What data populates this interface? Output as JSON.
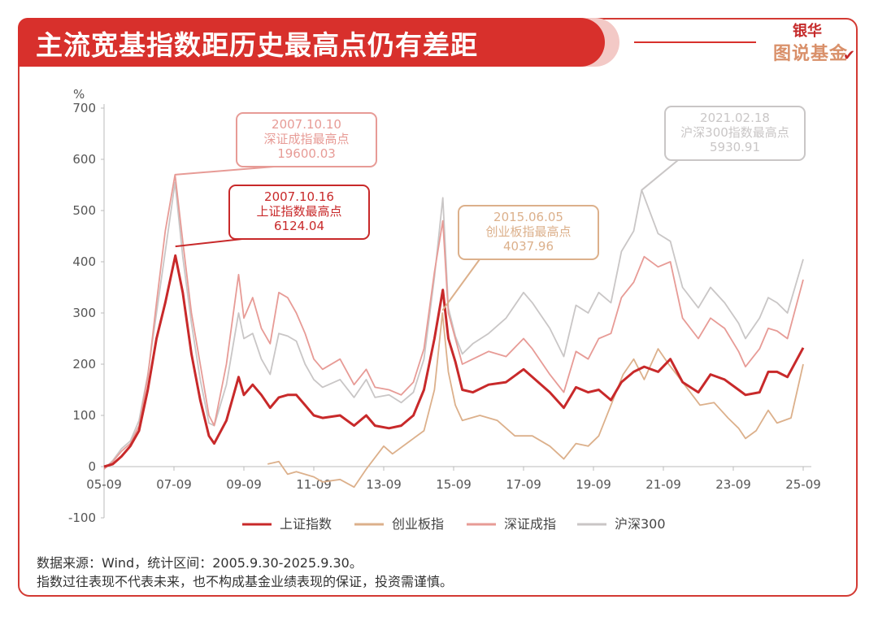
{
  "title": "主流宽基指数距历史最高点仍有差距",
  "brand": {
    "top": "银华",
    "bottom": "图说基金"
  },
  "footer": {
    "line1": "数据来源：Wind，统计区间：2005.9.30-2025.9.30。",
    "line2": "指数过往表现不代表未来，也不构成基金业绩表现的保证，投资需谨慎。"
  },
  "colors": {
    "sh": "#c8292a",
    "cy": "#dcb08b",
    "sz": "#e79b96",
    "hs300": "#c9c6c6",
    "accent": "#d8302c"
  },
  "chart_data": {
    "type": "line",
    "ylabel": "%",
    "ylim": [
      -100,
      700
    ],
    "yticks": [
      -100,
      0,
      100,
      200,
      300,
      400,
      500,
      600,
      700
    ],
    "xlim": [
      2005.75,
      2025.75
    ],
    "xticks": [
      {
        "label": "05-09",
        "x": 2005.75
      },
      {
        "label": "07-09",
        "x": 2007.75
      },
      {
        "label": "09-09",
        "x": 2009.75
      },
      {
        "label": "11-09",
        "x": 2011.75
      },
      {
        "label": "13-09",
        "x": 2013.75
      },
      {
        "label": "15-09",
        "x": 2015.75
      },
      {
        "label": "17-09",
        "x": 2017.75
      },
      {
        "label": "19-09",
        "x": 2019.75
      },
      {
        "label": "21-09",
        "x": 2021.75
      },
      {
        "label": "23-09",
        "x": 2023.75
      },
      {
        "label": "25-09",
        "x": 2025.75
      }
    ],
    "legend_position": "bottom",
    "series": [
      {
        "name": "上证指数",
        "color_key": "sh",
        "points": [
          [
            2005.75,
            0
          ],
          [
            2006.0,
            5
          ],
          [
            2006.25,
            20
          ],
          [
            2006.5,
            40
          ],
          [
            2006.75,
            70
          ],
          [
            2007.0,
            150
          ],
          [
            2007.25,
            250
          ],
          [
            2007.5,
            320
          ],
          [
            2007.79,
            412
          ],
          [
            2008.0,
            340
          ],
          [
            2008.25,
            220
          ],
          [
            2008.5,
            130
          ],
          [
            2008.75,
            60
          ],
          [
            2008.9,
            45
          ],
          [
            2009.25,
            90
          ],
          [
            2009.6,
            175
          ],
          [
            2009.75,
            140
          ],
          [
            2010.0,
            160
          ],
          [
            2010.25,
            140
          ],
          [
            2010.5,
            115
          ],
          [
            2010.75,
            135
          ],
          [
            2011.0,
            140
          ],
          [
            2011.25,
            140
          ],
          [
            2011.5,
            120
          ],
          [
            2011.75,
            100
          ],
          [
            2012.0,
            95
          ],
          [
            2012.5,
            100
          ],
          [
            2012.9,
            80
          ],
          [
            2013.25,
            100
          ],
          [
            2013.5,
            80
          ],
          [
            2013.9,
            75
          ],
          [
            2014.25,
            80
          ],
          [
            2014.6,
            100
          ],
          [
            2014.9,
            150
          ],
          [
            2015.2,
            250
          ],
          [
            2015.44,
            345
          ],
          [
            2015.6,
            250
          ],
          [
            2015.8,
            205
          ],
          [
            2016.0,
            150
          ],
          [
            2016.3,
            145
          ],
          [
            2016.75,
            160
          ],
          [
            2017.25,
            165
          ],
          [
            2017.75,
            190
          ],
          [
            2018.0,
            175
          ],
          [
            2018.5,
            145
          ],
          [
            2018.9,
            115
          ],
          [
            2019.25,
            155
          ],
          [
            2019.6,
            145
          ],
          [
            2019.9,
            150
          ],
          [
            2020.25,
            130
          ],
          [
            2020.55,
            165
          ],
          [
            2020.9,
            185
          ],
          [
            2021.2,
            195
          ],
          [
            2021.6,
            185
          ],
          [
            2021.95,
            210
          ],
          [
            2022.3,
            165
          ],
          [
            2022.75,
            145
          ],
          [
            2023.1,
            180
          ],
          [
            2023.5,
            170
          ],
          [
            2023.9,
            150
          ],
          [
            2024.1,
            140
          ],
          [
            2024.5,
            145
          ],
          [
            2024.75,
            185
          ],
          [
            2025.0,
            185
          ],
          [
            2025.3,
            175
          ],
          [
            2025.75,
            232
          ]
        ]
      },
      {
        "name": "创业板指",
        "color_key": "cy",
        "points": [
          [
            2010.43,
            5
          ],
          [
            2010.75,
            10
          ],
          [
            2011.0,
            -15
          ],
          [
            2011.25,
            -10
          ],
          [
            2011.75,
            -20
          ],
          [
            2012.0,
            -30
          ],
          [
            2012.5,
            -25
          ],
          [
            2012.9,
            -40
          ],
          [
            2013.25,
            -5
          ],
          [
            2013.75,
            40
          ],
          [
            2014.0,
            25
          ],
          [
            2014.5,
            50
          ],
          [
            2014.9,
            70
          ],
          [
            2015.2,
            150
          ],
          [
            2015.43,
            300
          ],
          [
            2015.6,
            185
          ],
          [
            2015.8,
            120
          ],
          [
            2016.0,
            90
          ],
          [
            2016.5,
            100
          ],
          [
            2017.0,
            90
          ],
          [
            2017.5,
            60
          ],
          [
            2018.0,
            60
          ],
          [
            2018.5,
            40
          ],
          [
            2018.9,
            15
          ],
          [
            2019.25,
            45
          ],
          [
            2019.6,
            40
          ],
          [
            2019.9,
            60
          ],
          [
            2020.25,
            120
          ],
          [
            2020.6,
            180
          ],
          [
            2020.9,
            210
          ],
          [
            2021.2,
            170
          ],
          [
            2021.6,
            230
          ],
          [
            2021.9,
            200
          ],
          [
            2022.3,
            165
          ],
          [
            2022.8,
            120
          ],
          [
            2023.2,
            125
          ],
          [
            2023.6,
            95
          ],
          [
            2023.9,
            75
          ],
          [
            2024.1,
            55
          ],
          [
            2024.4,
            70
          ],
          [
            2024.75,
            110
          ],
          [
            2025.0,
            85
          ],
          [
            2025.4,
            95
          ],
          [
            2025.75,
            200
          ]
        ]
      },
      {
        "name": "深证成指",
        "color_key": "sz",
        "points": [
          [
            2005.75,
            -5
          ],
          [
            2006.0,
            10
          ],
          [
            2006.25,
            30
          ],
          [
            2006.5,
            45
          ],
          [
            2006.75,
            80
          ],
          [
            2007.0,
            175
          ],
          [
            2007.25,
            320
          ],
          [
            2007.5,
            460
          ],
          [
            2007.78,
            570
          ],
          [
            2008.0,
            440
          ],
          [
            2008.25,
            300
          ],
          [
            2008.5,
            200
          ],
          [
            2008.75,
            100
          ],
          [
            2008.9,
            80
          ],
          [
            2009.25,
            200
          ],
          [
            2009.6,
            375
          ],
          [
            2009.75,
            290
          ],
          [
            2010.0,
            330
          ],
          [
            2010.25,
            270
          ],
          [
            2010.5,
            240
          ],
          [
            2010.75,
            340
          ],
          [
            2011.0,
            330
          ],
          [
            2011.25,
            300
          ],
          [
            2011.5,
            260
          ],
          [
            2011.75,
            210
          ],
          [
            2012.0,
            190
          ],
          [
            2012.5,
            210
          ],
          [
            2012.9,
            160
          ],
          [
            2013.25,
            190
          ],
          [
            2013.5,
            155
          ],
          [
            2013.9,
            150
          ],
          [
            2014.25,
            140
          ],
          [
            2014.6,
            165
          ],
          [
            2014.9,
            230
          ],
          [
            2015.2,
            380
          ],
          [
            2015.44,
            480
          ],
          [
            2015.6,
            300
          ],
          [
            2015.8,
            250
          ],
          [
            2016.0,
            200
          ],
          [
            2016.3,
            210
          ],
          [
            2016.75,
            225
          ],
          [
            2017.25,
            215
          ],
          [
            2017.75,
            250
          ],
          [
            2018.0,
            230
          ],
          [
            2018.5,
            180
          ],
          [
            2018.9,
            145
          ],
          [
            2019.25,
            225
          ],
          [
            2019.6,
            210
          ],
          [
            2019.9,
            250
          ],
          [
            2020.25,
            260
          ],
          [
            2020.55,
            330
          ],
          [
            2020.9,
            360
          ],
          [
            2021.2,
            410
          ],
          [
            2021.6,
            390
          ],
          [
            2021.95,
            400
          ],
          [
            2022.3,
            290
          ],
          [
            2022.75,
            250
          ],
          [
            2023.1,
            290
          ],
          [
            2023.5,
            270
          ],
          [
            2023.9,
            225
          ],
          [
            2024.1,
            195
          ],
          [
            2024.5,
            230
          ],
          [
            2024.75,
            270
          ],
          [
            2025.0,
            265
          ],
          [
            2025.3,
            250
          ],
          [
            2025.75,
            365
          ]
        ]
      },
      {
        "name": "沪深300",
        "color_key": "hs300",
        "points": [
          [
            2005.75,
            -5
          ],
          [
            2006.0,
            12
          ],
          [
            2006.25,
            35
          ],
          [
            2006.5,
            50
          ],
          [
            2006.75,
            90
          ],
          [
            2007.0,
            180
          ],
          [
            2007.25,
            300
          ],
          [
            2007.5,
            420
          ],
          [
            2007.78,
            555
          ],
          [
            2008.0,
            410
          ],
          [
            2008.25,
            280
          ],
          [
            2008.5,
            170
          ],
          [
            2008.75,
            85
          ],
          [
            2008.9,
            80
          ],
          [
            2009.25,
            160
          ],
          [
            2009.6,
            300
          ],
          [
            2009.75,
            250
          ],
          [
            2010.0,
            260
          ],
          [
            2010.25,
            210
          ],
          [
            2010.5,
            180
          ],
          [
            2010.75,
            260
          ],
          [
            2011.0,
            255
          ],
          [
            2011.25,
            245
          ],
          [
            2011.5,
            200
          ],
          [
            2011.75,
            170
          ],
          [
            2012.0,
            155
          ],
          [
            2012.5,
            170
          ],
          [
            2012.9,
            135
          ],
          [
            2013.25,
            170
          ],
          [
            2013.5,
            135
          ],
          [
            2013.9,
            140
          ],
          [
            2014.25,
            125
          ],
          [
            2014.6,
            145
          ],
          [
            2014.9,
            210
          ],
          [
            2015.2,
            370
          ],
          [
            2015.44,
            525
          ],
          [
            2015.6,
            310
          ],
          [
            2015.8,
            255
          ],
          [
            2016.0,
            220
          ],
          [
            2016.3,
            240
          ],
          [
            2016.75,
            260
          ],
          [
            2017.25,
            290
          ],
          [
            2017.75,
            340
          ],
          [
            2018.0,
            320
          ],
          [
            2018.5,
            270
          ],
          [
            2018.9,
            215
          ],
          [
            2019.25,
            315
          ],
          [
            2019.6,
            300
          ],
          [
            2019.9,
            340
          ],
          [
            2020.25,
            320
          ],
          [
            2020.55,
            420
          ],
          [
            2020.9,
            460
          ],
          [
            2021.13,
            540
          ],
          [
            2021.6,
            455
          ],
          [
            2021.95,
            440
          ],
          [
            2022.3,
            350
          ],
          [
            2022.75,
            310
          ],
          [
            2023.1,
            350
          ],
          [
            2023.5,
            320
          ],
          [
            2023.9,
            280
          ],
          [
            2024.1,
            250
          ],
          [
            2024.5,
            290
          ],
          [
            2024.75,
            330
          ],
          [
            2025.0,
            320
          ],
          [
            2025.3,
            300
          ],
          [
            2025.75,
            405
          ]
        ]
      }
    ],
    "annotations": [
      {
        "lines": [
          "2007.10.10",
          "深证成指最高点",
          "19600.03"
        ],
        "color_key": "sz",
        "target": [
          2007.78,
          570
        ]
      },
      {
        "lines": [
          "2007.10.16",
          "上证指数最高点",
          "6124.04"
        ],
        "color_key": "sh",
        "target": [
          2007.79,
          430
        ]
      },
      {
        "lines": [
          "2015.06.05",
          "创业板指最高点",
          "4037.96"
        ],
        "color_key": "cy",
        "target": [
          2015.43,
          305
        ]
      },
      {
        "lines": [
          "2021.02.18",
          "沪深300指数最高点",
          "5930.91"
        ],
        "color_key": "hs300",
        "target": [
          2021.13,
          540
        ]
      }
    ]
  }
}
